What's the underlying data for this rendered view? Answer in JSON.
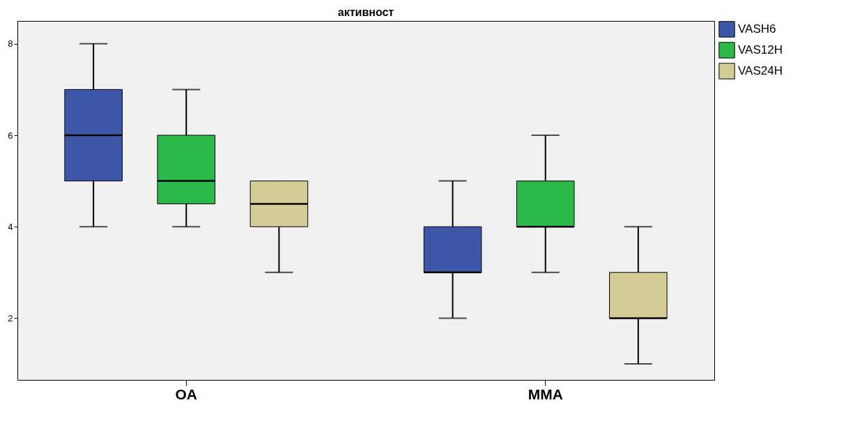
{
  "chart_data": {
    "type": "box",
    "title": "активност",
    "categories": [
      "OA",
      "MMA"
    ],
    "series": [
      {
        "name": "VASH6",
        "color": "#3e56a8",
        "boxes": [
          {
            "low": 4,
            "q1": 5,
            "median": 6,
            "q3": 7,
            "high": 8
          },
          {
            "low": 2,
            "q1": 3,
            "median": 3,
            "q3": 4,
            "high": 5
          }
        ]
      },
      {
        "name": "VAS12H",
        "color": "#2db84a",
        "boxes": [
          {
            "low": 4,
            "q1": 4.5,
            "median": 5,
            "q3": 6,
            "high": 7
          },
          {
            "low": 3,
            "q1": 4,
            "median": 4,
            "q3": 5,
            "high": 6
          }
        ]
      },
      {
        "name": "VAS24H",
        "color": "#d4cc96",
        "boxes": [
          {
            "low": 3,
            "q1": 4,
            "median": 4.5,
            "q3": 5,
            "high": 5
          },
          {
            "low": 1,
            "q1": 2,
            "median": 2,
            "q3": 3,
            "high": 4
          }
        ]
      }
    ],
    "ylim": [
      0.65,
      8.5
    ],
    "yticks": [
      2,
      4,
      6,
      8
    ],
    "legend": "top right"
  }
}
